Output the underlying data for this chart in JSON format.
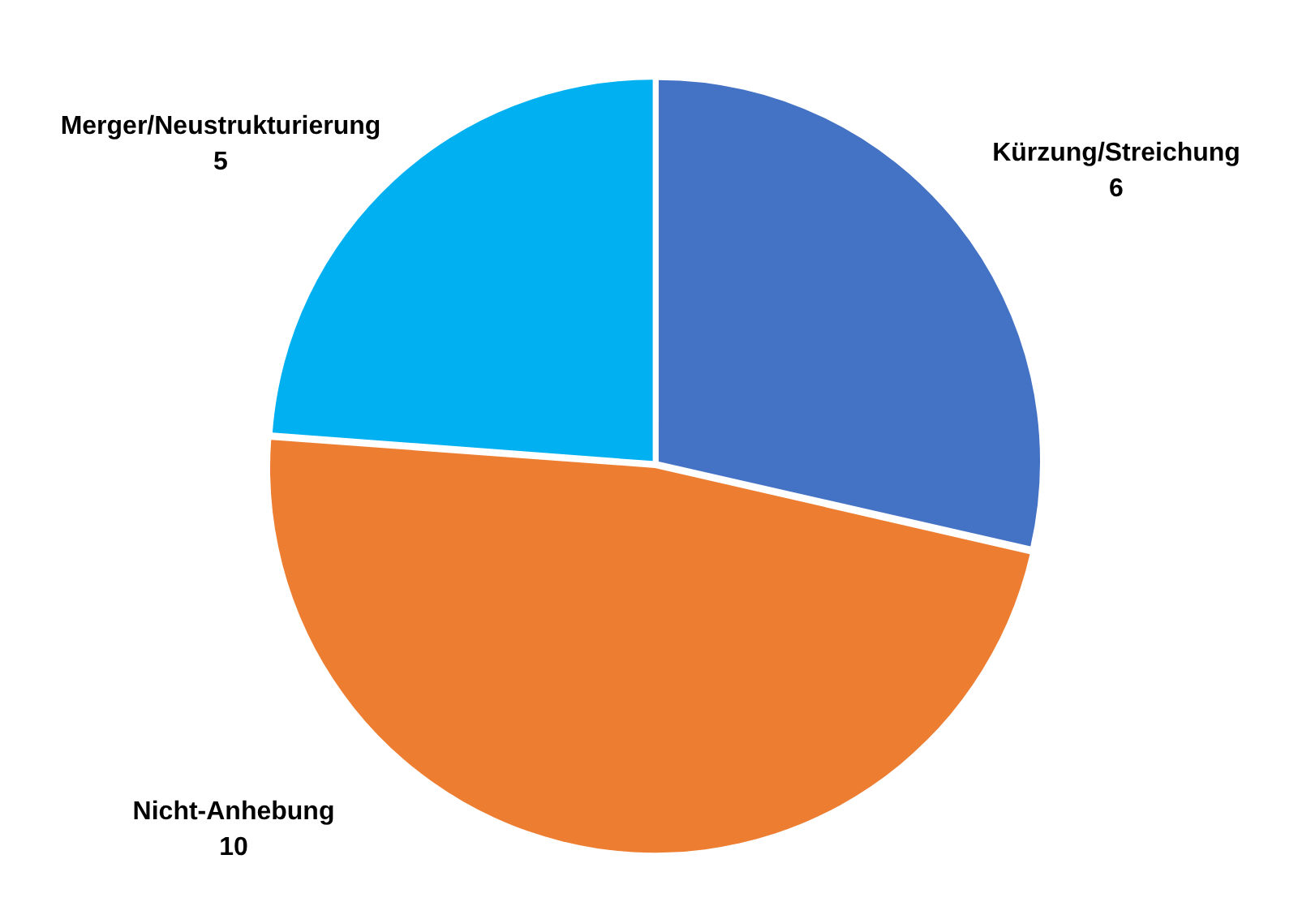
{
  "chart_data": {
    "type": "pie",
    "categories": [
      "Kürzung/Streichung",
      "Nicht-Anhebung",
      "Merger/Neustrukturierung"
    ],
    "values": [
      6,
      10,
      5
    ],
    "colors": [
      "#4472c4",
      "#ed7d31",
      "#00b0f0"
    ],
    "data_labels": true,
    "legend": false
  }
}
